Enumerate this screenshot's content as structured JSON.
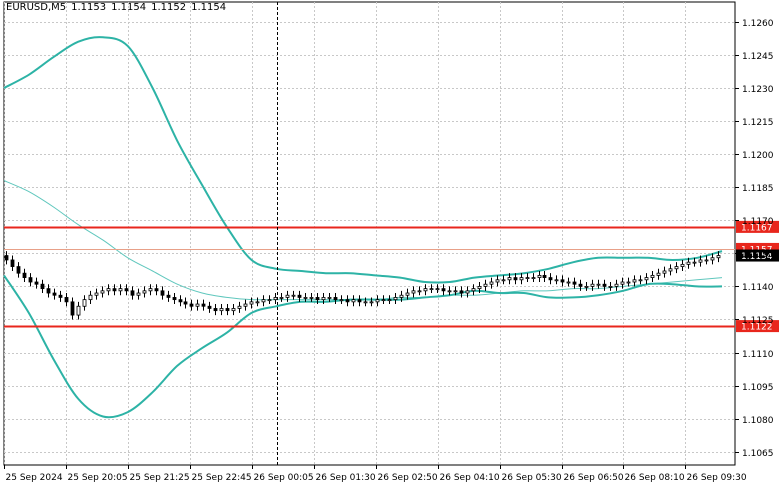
{
  "header": {
    "symbol": "EURUSD,M5",
    "open": "1.1153",
    "high": "1.1154",
    "low": "1.1152",
    "close": "1.1154"
  },
  "colors": {
    "background": "#ffffff",
    "grid": "#c8c8c8",
    "bands": "#2db3a6",
    "middle_band": "#5fc7bd",
    "candle": "#000000",
    "level_line": "#e8261c",
    "price_line": "#e8a088",
    "price_tag": "#e8261c",
    "current_price_tag": "#000000"
  },
  "chart_data": {
    "type": "candlestick",
    "y_axis": {
      "min": 1.1059,
      "max": 1.1269,
      "ticks": [
        "1.1260",
        "1.1245",
        "1.1230",
        "1.1215",
        "1.1200",
        "1.1185",
        "1.1170",
        "1.1155",
        "1.1140",
        "1.1125",
        "1.1110",
        "1.1095",
        "1.1080",
        "1.1065"
      ]
    },
    "x_axis": {
      "ticks": [
        "25 Sep 2024",
        "25 Sep 20:05",
        "25 Sep 21:25",
        "25 Sep 22:45",
        "26 Sep 00:05",
        "26 Sep 01:30",
        "26 Sep 02:50",
        "26 Sep 04:10",
        "26 Sep 05:30",
        "26 Sep 06:50",
        "26 Sep 08:10",
        "26 Sep 09:30"
      ]
    },
    "grid": true,
    "bars_count": 120,
    "vertical_marker_bar": 42,
    "levels": [
      {
        "value": 1.1167,
        "label": "1.1167"
      },
      {
        "value": 1.1122,
        "label": "1.1122"
      }
    ],
    "price_line": {
      "value": 1.1157,
      "label": "1.1157"
    },
    "current_price": {
      "value": 1.1154,
      "label": "1.1154"
    },
    "candles_close": [
      1.1152,
      1.1149,
      1.1146,
      1.1144,
      1.1142,
      1.1141,
      1.1139,
      1.1137,
      1.1136,
      1.1135,
      1.1133,
      1.1127,
      1.1131,
      1.1134,
      1.1136,
      1.1137,
      1.1138,
      1.1139,
      1.1138,
      1.1139,
      1.1138,
      1.1136,
      1.1137,
      1.1138,
      1.1139,
      1.1138,
      1.1136,
      1.1135,
      1.1134,
      1.1133,
      1.1132,
      1.1131,
      1.1132,
      1.1131,
      1.113,
      1.1129,
      1.113,
      1.1129,
      1.113,
      1.1131,
      1.1132,
      1.1133,
      1.1133,
      1.1134,
      1.1134,
      1.1135,
      1.1135,
      1.1136,
      1.1136,
      1.1135,
      1.1135,
      1.1135,
      1.1134,
      1.1135,
      1.1135,
      1.1134,
      1.1134,
      1.1133,
      1.1134,
      1.1133,
      1.1133,
      1.1133,
      1.1134,
      1.1134,
      1.1134,
      1.1135,
      1.1136,
      1.1137,
      1.1138,
      1.1138,
      1.1139,
      1.1139,
      1.1139,
      1.1138,
      1.1138,
      1.1138,
      1.1137,
      1.1138,
      1.1139,
      1.114,
      1.1141,
      1.1142,
      1.1143,
      1.1143,
      1.1144,
      1.1143,
      1.1144,
      1.1144,
      1.1144,
      1.1145,
      1.1144,
      1.1143,
      1.1143,
      1.1142,
      1.1142,
      1.1141,
      1.114,
      1.114,
      1.1141,
      1.1141,
      1.114,
      1.114,
      1.1141,
      1.1142,
      1.1142,
      1.1143,
      1.1143,
      1.1144,
      1.1145,
      1.1146,
      1.1147,
      1.1148,
      1.1149,
      1.115,
      1.1151,
      1.1151,
      1.1152,
      1.1152,
      1.1153,
      1.1154
    ],
    "upper_band": [
      1.123,
      1.1236,
      1.1244,
      1.1251,
      1.1253,
      1.1249,
      1.123,
      1.1206,
      1.1186,
      1.1167,
      1.1152,
      1.1148,
      1.1147,
      1.1146,
      1.1146,
      1.1145,
      1.1144,
      1.1142,
      1.1142,
      1.1144,
      1.1145,
      1.1146,
      1.1148,
      1.1151,
      1.1153,
      1.1153,
      1.1153,
      1.1152,
      1.1153,
      1.1156
    ],
    "lower_band": [
      1.1145,
      1.1128,
      1.1107,
      1.1089,
      1.1081,
      1.1083,
      1.1092,
      1.1104,
      1.1112,
      1.1119,
      1.1128,
      1.1131,
      1.1133,
      1.1133,
      1.1134,
      1.1134,
      1.1134,
      1.1135,
      1.1136,
      1.1138,
      1.1137,
      1.1137,
      1.1135,
      1.1135,
      1.1136,
      1.1138,
      1.1141,
      1.1141,
      1.114,
      1.114
    ],
    "middle_band": [
      1.1188,
      1.1183,
      1.1176,
      1.1168,
      1.1161,
      1.1153,
      1.1147,
      1.1141,
      1.1137,
      1.1135,
      1.1134,
      1.1134,
      1.1134,
      1.1134,
      1.1134,
      1.1134,
      1.1135,
      1.1135,
      1.1136,
      1.1136,
      1.1137,
      1.1138,
      1.1138,
      1.1139,
      1.1139,
      1.114,
      1.1141,
      1.1142,
      1.1143,
      1.1144
    ]
  }
}
